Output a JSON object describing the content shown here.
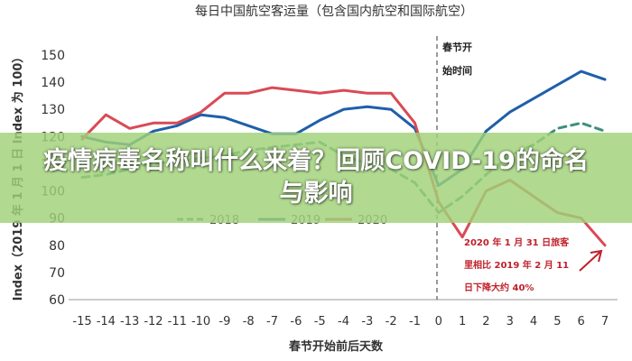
{
  "chart_data": {
    "type": "line",
    "title": "每日中国航空客运量（包含国内航空和国际航空）",
    "xlabel": "春节开始前后天数",
    "ylabel": "Index（2019 年 1 月 1 日 Index 为 100）",
    "x": [
      -15,
      -14,
      -13,
      -12,
      -11,
      -10,
      -9,
      -8,
      -7,
      -6,
      -5,
      -4,
      -3,
      -2,
      -1,
      0,
      1,
      2,
      3,
      4,
      5,
      6,
      7
    ],
    "xticks": [
      "-15",
      "-14",
      "-13",
      "-12",
      "-11",
      "-10",
      "-9",
      "-8",
      "-7",
      "-6",
      "-5",
      "-4",
      "-3",
      "-2",
      "-1",
      "0",
      "1",
      "2",
      "3",
      "4",
      "5",
      "6",
      "7"
    ],
    "yticks": [
      "60",
      "70",
      "80",
      "90",
      "100",
      "110",
      "120",
      "130",
      "140",
      "150"
    ],
    "ylim": [
      60,
      150
    ],
    "grid": false,
    "legend": "bottom-center",
    "series": [
      {
        "name": "2018",
        "style": "dashed",
        "color": "#3f8f7f",
        "values": [
          105,
          106,
          108,
          110,
          111,
          112,
          113,
          115,
          116,
          117,
          118,
          113,
          110,
          108,
          103,
          92,
          98,
          106,
          113,
          117,
          123,
          125,
          122
        ]
      },
      {
        "name": "2019",
        "style": "solid",
        "color": "#1f5fa8",
        "values": [
          120,
          118,
          117,
          122,
          124,
          128,
          127,
          124,
          121,
          121,
          126,
          130,
          131,
          130,
          123,
          102,
          108,
          122,
          129,
          134,
          139,
          144,
          141
        ]
      },
      {
        "name": "2020",
        "style": "solid",
        "color": "#d94a55",
        "values": [
          119,
          128,
          123,
          125,
          125,
          129,
          136,
          136,
          138,
          137,
          136,
          137,
          136,
          136,
          125,
          96,
          83,
          100,
          104,
          98,
          92,
          90,
          80
        ]
      }
    ],
    "annotations": [
      {
        "text": [
          "春节开",
          "始时间"
        ],
        "x": 0
      },
      {
        "text": [
          "2020 年 1 月 31 日旅客",
          "里相比 2019 年 2 月 11",
          "日下降大约 40%"
        ],
        "color": "#c0202a"
      }
    ]
  },
  "overlay": {
    "title": "疫情病毒名称叫什么来着？回顾COVID-19的命名与影响"
  }
}
